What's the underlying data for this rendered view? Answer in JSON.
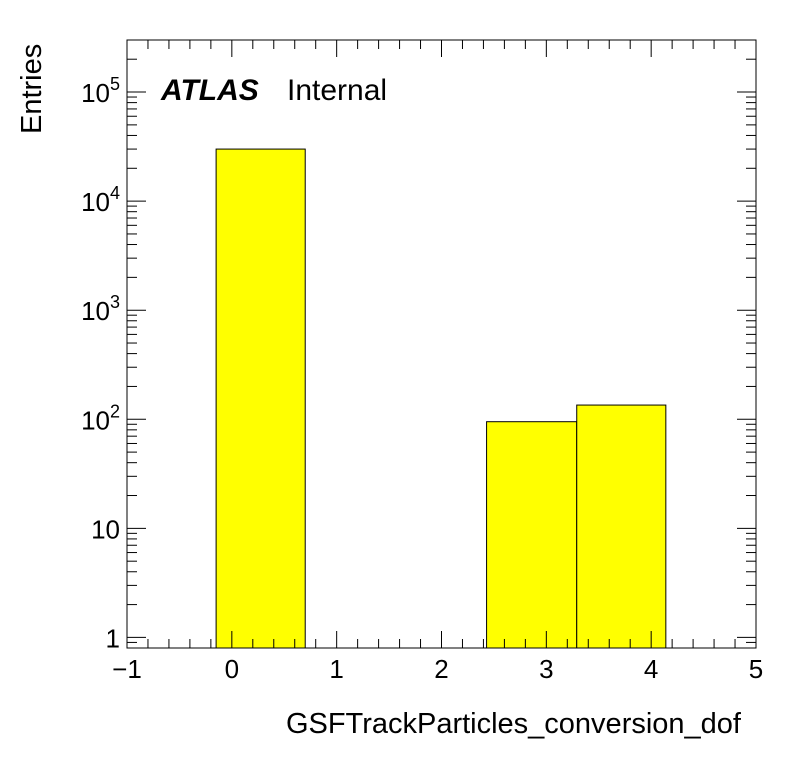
{
  "chart_data": {
    "type": "bar",
    "histogram": true,
    "bin_edges": [
      -0.15,
      0.7,
      1.55,
      2.43,
      3.29,
      4.14
    ],
    "values": [
      30000,
      0,
      0,
      95,
      135
    ],
    "fill_color": "#ffff00",
    "line_color": "#000000",
    "xlabel": "GSFTrackParticles_conversion_dof",
    "ylabel": "Entries",
    "xlim": [
      -1,
      5
    ],
    "ylim": [
      0.8,
      300000
    ],
    "yscale": "log",
    "x_ticks": [
      {
        "value": -1,
        "label": "−1"
      },
      {
        "value": 0,
        "label": "0"
      },
      {
        "value": 1,
        "label": "1"
      },
      {
        "value": 2,
        "label": "2"
      },
      {
        "value": 3,
        "label": "3"
      },
      {
        "value": 4,
        "label": "4"
      },
      {
        "value": 5,
        "label": "5"
      }
    ],
    "y_ticks": [
      {
        "value": 1,
        "base": "1",
        "exp": ""
      },
      {
        "value": 10,
        "base": "10",
        "exp": ""
      },
      {
        "value": 100,
        "base": "10",
        "exp": "2"
      },
      {
        "value": 1000,
        "base": "10",
        "exp": "3"
      },
      {
        "value": 10000,
        "base": "10",
        "exp": "4"
      },
      {
        "value": 100000,
        "base": "10",
        "exp": "5"
      }
    ],
    "annotation": {
      "experiment": "ATLAS",
      "status": "Internal"
    }
  }
}
